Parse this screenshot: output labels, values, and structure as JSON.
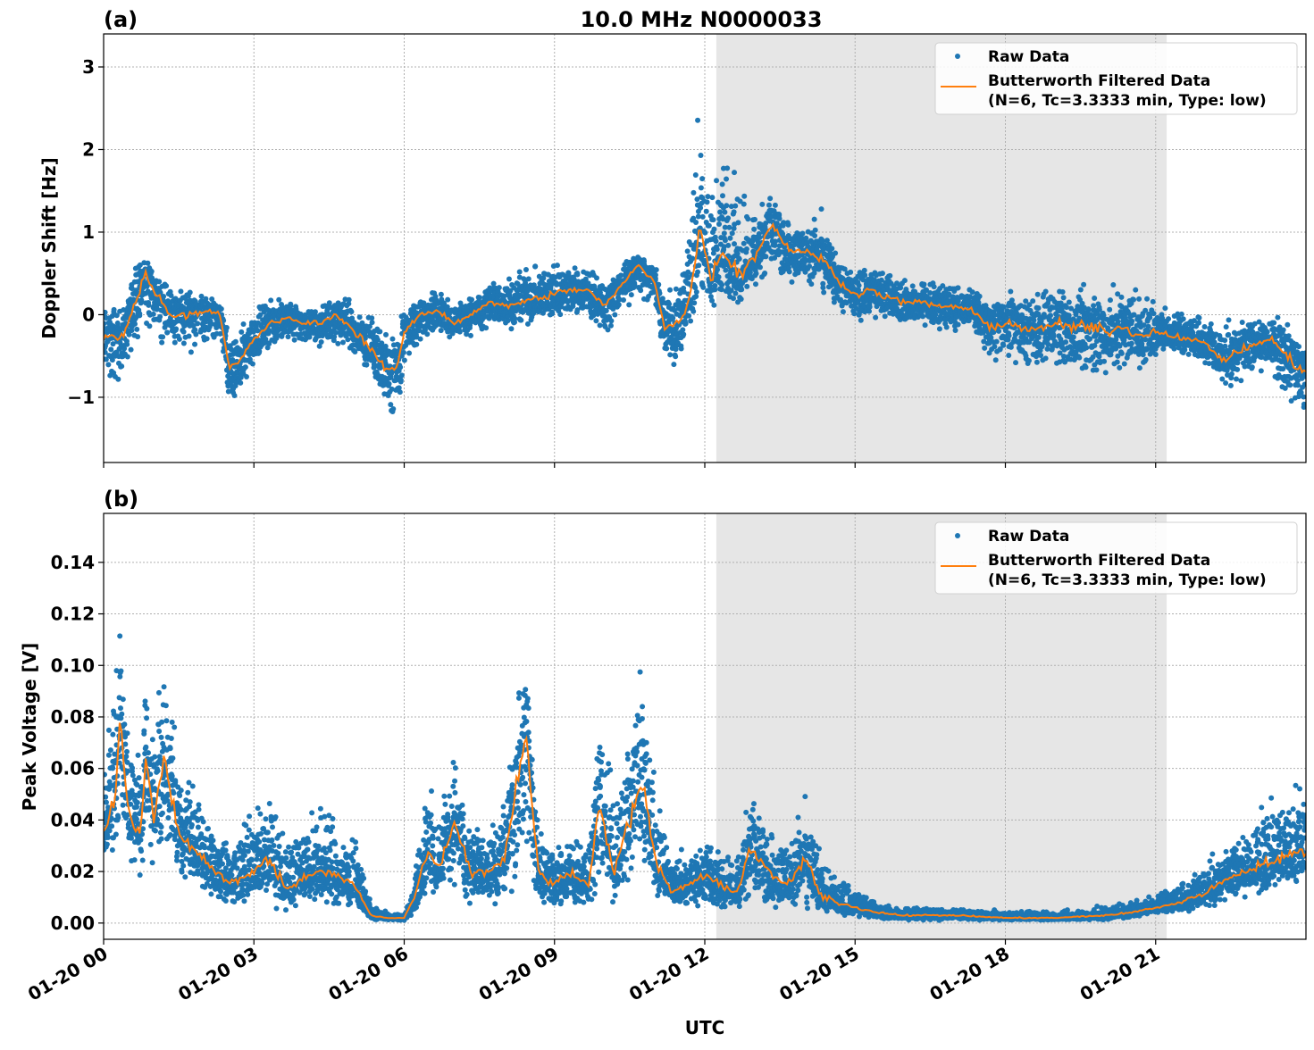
{
  "chart_data": [
    {
      "type": "scatter",
      "panel_label": "(a)",
      "title": "10.0 MHz N0000033",
      "xlabel": "",
      "ylabel": "Doppler Shift [Hz]",
      "xlim_hours": [
        0,
        24
      ],
      "ylim": [
        -1.79,
        3.4
      ],
      "yticks": [
        -1,
        0,
        1,
        2,
        3
      ],
      "ytick_labels": [
        "−1",
        "0",
        "1",
        "2",
        "3"
      ],
      "grid": true,
      "legend": "top-right",
      "shaded_span_hours": [
        12.23,
        21.22
      ],
      "series": [
        {
          "name": "Raw Data",
          "kind": "scatter",
          "color": "#1f77b4"
        },
        {
          "name": "Butterworth Filtered Data\n(N=6, Tc=3.3333 min, Type: low)",
          "kind": "line",
          "color": "#ff7f0e"
        }
      ],
      "x_hours": [
        0,
        0.33,
        0.67,
        0.83,
        1,
        1.33,
        1.67,
        2,
        2.33,
        2.5,
        2.67,
        3,
        3.33,
        3.67,
        4,
        4.33,
        4.67,
        5,
        5.33,
        5.67,
        5.9,
        6,
        6.33,
        6.67,
        7,
        7.33,
        7.67,
        8,
        8.33,
        8.67,
        9,
        9.33,
        9.67,
        10,
        10.33,
        10.67,
        11,
        11.2,
        11.5,
        11.75,
        11.9,
        12.1,
        12.33,
        12.67,
        13,
        13.33,
        13.67,
        14,
        14.33,
        14.67,
        15,
        15.33,
        15.67,
        16,
        16.33,
        16.67,
        17,
        17.33,
        17.67,
        18,
        18.33,
        18.67,
        19,
        19.33,
        19.67,
        20,
        20.33,
        20.67,
        21,
        21.33,
        21.67,
        22,
        22.33,
        22.67,
        23,
        23.33,
        23.67,
        24
      ],
      "filtered": [
        -0.25,
        -0.3,
        0.2,
        0.5,
        0.3,
        0,
        0,
        0.05,
        0,
        -0.65,
        -0.6,
        -0.3,
        -0.1,
        -0.05,
        -0.1,
        -0.1,
        0,
        -0.2,
        -0.4,
        -0.7,
        -0.6,
        -0.2,
        0,
        0.05,
        -0.1,
        0,
        0.15,
        0.1,
        0.15,
        0.2,
        0.25,
        0.3,
        0.3,
        0.1,
        0.35,
        0.6,
        0.4,
        -0.15,
        -0.1,
        0.3,
        1.2,
        0.4,
        0.8,
        0.5,
        0.7,
        1.1,
        0.8,
        0.75,
        0.7,
        0.4,
        0.25,
        0.3,
        0.2,
        0.15,
        0.15,
        0.1,
        0.1,
        0.05,
        -0.15,
        -0.1,
        -0.15,
        -0.2,
        -0.1,
        -0.15,
        -0.15,
        -0.2,
        -0.15,
        -0.25,
        -0.2,
        -0.25,
        -0.3,
        -0.35,
        -0.55,
        -0.45,
        -0.35,
        -0.3,
        -0.55,
        -0.7
      ],
      "raw_low": [
        -0.8,
        -0.9,
        -0.4,
        -0.1,
        -0.3,
        -0.5,
        -0.5,
        -0.4,
        -0.3,
        -1.2,
        -1,
        -0.6,
        -0.4,
        -0.4,
        -0.4,
        -0.45,
        -0.35,
        -0.5,
        -0.8,
        -1.3,
        -1.35,
        -0.7,
        -0.3,
        -0.25,
        -0.4,
        -0.3,
        -0.2,
        -0.2,
        -0.2,
        -0.1,
        -0.1,
        -0.05,
        -0.05,
        -0.3,
        0,
        0.2,
        0,
        -0.6,
        -0.7,
        -0.3,
        0.1,
        0.05,
        0.1,
        0.1,
        0.3,
        0.5,
        0.4,
        0.35,
        0.3,
        0,
        -0.1,
        -0.1,
        -0.1,
        -0.15,
        -0.15,
        -0.2,
        -0.2,
        -0.2,
        -0.6,
        -0.6,
        -0.7,
        -0.8,
        -0.7,
        -0.8,
        -0.9,
        -0.8,
        -0.7,
        -0.7,
        -0.55,
        -0.5,
        -0.55,
        -0.6,
        -0.9,
        -0.9,
        -0.7,
        -0.75,
        -1.2,
        -1.4
      ],
      "raw_high": [
        0.2,
        0.15,
        0.7,
        0.8,
        0.6,
        0.35,
        0.3,
        0.25,
        0.2,
        -0.2,
        -0.2,
        0.1,
        0.2,
        0.2,
        0.15,
        0.15,
        0.25,
        0.2,
        0,
        -0.2,
        -0.1,
        0.1,
        0.3,
        0.3,
        0.2,
        0.2,
        0.4,
        0.5,
        0.6,
        0.6,
        0.7,
        0.7,
        0.7,
        0.4,
        0.6,
        0.75,
        0.6,
        0.3,
        0.5,
        2,
        2.7,
        2,
        2.2,
        2,
        1.3,
        1.55,
        1.2,
        1.1,
        1.3,
        0.7,
        0.6,
        0.65,
        0.6,
        0.5,
        0.5,
        0.45,
        0.45,
        0.4,
        0.2,
        0.3,
        0.3,
        0.35,
        0.4,
        0.4,
        0.45,
        0.4,
        0.35,
        0.4,
        0.2,
        0.1,
        0.05,
        0,
        -0.1,
        0,
        0,
        0.05,
        -0.1,
        -0.3
      ]
    },
    {
      "type": "scatter",
      "panel_label": "(b)",
      "title": "",
      "xlabel": "UTC",
      "ylabel": "Peak Voltage [V]",
      "xlim_hours": [
        0,
        24
      ],
      "xticks_hours": [
        0,
        3,
        6,
        9,
        12,
        15,
        18,
        21
      ],
      "xtick_labels": [
        "01-20 00",
        "01-20 03",
        "01-20 06",
        "01-20 09",
        "01-20 12",
        "01-20 15",
        "01-20 18",
        "01-20 21"
      ],
      "ylim": [
        -0.0063,
        0.159
      ],
      "yticks": [
        0,
        0.02,
        0.04,
        0.06,
        0.08,
        0.1,
        0.12,
        0.14
      ],
      "ytick_labels": [
        "0.00",
        "0.02",
        "0.04",
        "0.06",
        "0.08",
        "0.10",
        "0.12",
        "0.14"
      ],
      "grid": true,
      "legend": "top-right",
      "shaded_span_hours": [
        12.23,
        21.22
      ],
      "series": [
        {
          "name": "Raw Data",
          "kind": "scatter",
          "color": "#1f77b4"
        },
        {
          "name": "Butterworth Filtered Data\n(N=6, Tc=3.3333 min, Type: low)",
          "kind": "line",
          "color": "#ff7f0e"
        }
      ],
      "x_hours": [
        0,
        0.25,
        0.33,
        0.5,
        0.75,
        0.83,
        1,
        1.2,
        1.5,
        1.75,
        2,
        2.5,
        3,
        3.33,
        3.67,
        4,
        4.33,
        4.67,
        5,
        5.33,
        5.67,
        6,
        6.2,
        6.5,
        6.67,
        7,
        7.33,
        7.67,
        8,
        8.42,
        8.67,
        9,
        9.33,
        9.67,
        9.9,
        10.2,
        10.5,
        10.75,
        11,
        11.33,
        11.67,
        12,
        12.33,
        12.67,
        12.9,
        13.33,
        13.67,
        14,
        14.33,
        14.67,
        15,
        15.5,
        16,
        17,
        18,
        19,
        20,
        20.5,
        21,
        21.5,
        22,
        22.5,
        23,
        23.5,
        24
      ],
      "filtered": [
        0.035,
        0.05,
        0.08,
        0.04,
        0.035,
        0.065,
        0.04,
        0.065,
        0.035,
        0.03,
        0.025,
        0.015,
        0.02,
        0.025,
        0.012,
        0.018,
        0.02,
        0.018,
        0.015,
        0.003,
        0.002,
        0.002,
        0.01,
        0.03,
        0.02,
        0.04,
        0.02,
        0.02,
        0.025,
        0.075,
        0.02,
        0.015,
        0.02,
        0.015,
        0.045,
        0.02,
        0.04,
        0.055,
        0.025,
        0.012,
        0.015,
        0.018,
        0.015,
        0.012,
        0.03,
        0.018,
        0.015,
        0.025,
        0.01,
        0.008,
        0.006,
        0.004,
        0.003,
        0.003,
        0.002,
        0.002,
        0.003,
        0.004,
        0.006,
        0.008,
        0.012,
        0.018,
        0.022,
        0.025,
        0.028
      ],
      "raw_low": [
        0.02,
        0.025,
        0.03,
        0.02,
        0.015,
        0.025,
        0.015,
        0.025,
        0.015,
        0.01,
        0.008,
        0.006,
        0.006,
        0.006,
        0.005,
        0.006,
        0.006,
        0.005,
        0.004,
        0.001,
        0.001,
        0.001,
        0.003,
        0.008,
        0.005,
        0.01,
        0.005,
        0.006,
        0.006,
        0.01,
        0.005,
        0.004,
        0.006,
        0.005,
        0.01,
        0.006,
        0.015,
        0.02,
        0.01,
        0.005,
        0.005,
        0.006,
        0.005,
        0.005,
        0.008,
        0.006,
        0.006,
        0.006,
        0.004,
        0.003,
        0.002,
        0.001,
        0.001,
        0.001,
        0.001,
        0.001,
        0.001,
        0.002,
        0.003,
        0.004,
        0.005,
        0.008,
        0.01,
        0.012,
        0.015
      ],
      "raw_high": [
        0.07,
        0.1,
        0.12,
        0.07,
        0.07,
        0.11,
        0.07,
        0.11,
        0.06,
        0.055,
        0.045,
        0.035,
        0.05,
        0.055,
        0.035,
        0.04,
        0.05,
        0.04,
        0.035,
        0.008,
        0.004,
        0.004,
        0.02,
        0.06,
        0.05,
        0.065,
        0.04,
        0.04,
        0.05,
        0.108,
        0.04,
        0.035,
        0.04,
        0.03,
        0.09,
        0.045,
        0.08,
        0.105,
        0.06,
        0.03,
        0.03,
        0.035,
        0.03,
        0.03,
        0.055,
        0.04,
        0.035,
        0.05,
        0.03,
        0.02,
        0.015,
        0.008,
        0.007,
        0.006,
        0.005,
        0.005,
        0.007,
        0.009,
        0.012,
        0.016,
        0.025,
        0.032,
        0.045,
        0.055,
        0.06
      ]
    }
  ]
}
